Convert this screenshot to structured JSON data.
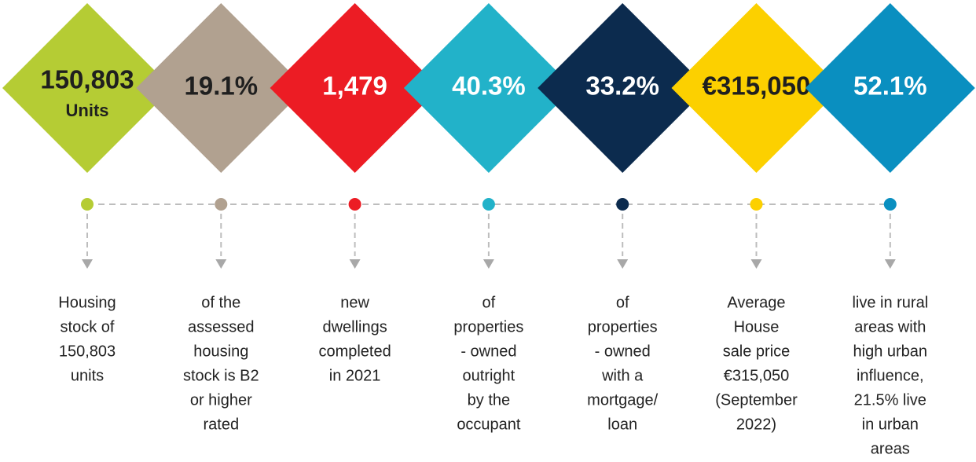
{
  "items": [
    {
      "value": "150,803",
      "unit": "Units",
      "color": "#b5cc34",
      "text_color": "#1f1f1f",
      "description": [
        "Housing",
        "stock of",
        "150,803",
        "units"
      ]
    },
    {
      "value": "19.1%",
      "color": "#b1a190",
      "text_color": "#1f1f1f",
      "description": [
        "of the",
        "assessed",
        "housing",
        "stock is B2",
        "or higher",
        "rated"
      ]
    },
    {
      "value": "1,479",
      "color": "#ec1c24",
      "text_color": "#ffffff",
      "description": [
        "new",
        "dwellings",
        "completed",
        "in 2021"
      ]
    },
    {
      "value": "40.3%",
      "color": "#22b2c9",
      "text_color": "#ffffff",
      "description": [
        "of",
        "properties",
        "- owned",
        "outright",
        "by the",
        "occupant"
      ]
    },
    {
      "value": "33.2%",
      "color": "#0c2b4e",
      "text_color": "#ffffff",
      "description": [
        "of",
        "properties",
        "- owned",
        "with a",
        "mortgage/",
        "loan"
      ]
    },
    {
      "value": "€315,050",
      "color": "#fcd000",
      "text_color": "#1f1f1f",
      "description": [
        "Average",
        "House",
        "sale price",
        "€315,050",
        "(September",
        "2022)"
      ]
    },
    {
      "value": "52.1%",
      "color": "#0a8fc0",
      "text_color": "#ffffff",
      "description": [
        "live in rural",
        "areas with",
        "high urban",
        "influence,",
        "21.5% live",
        "in urban",
        "areas"
      ]
    }
  ]
}
